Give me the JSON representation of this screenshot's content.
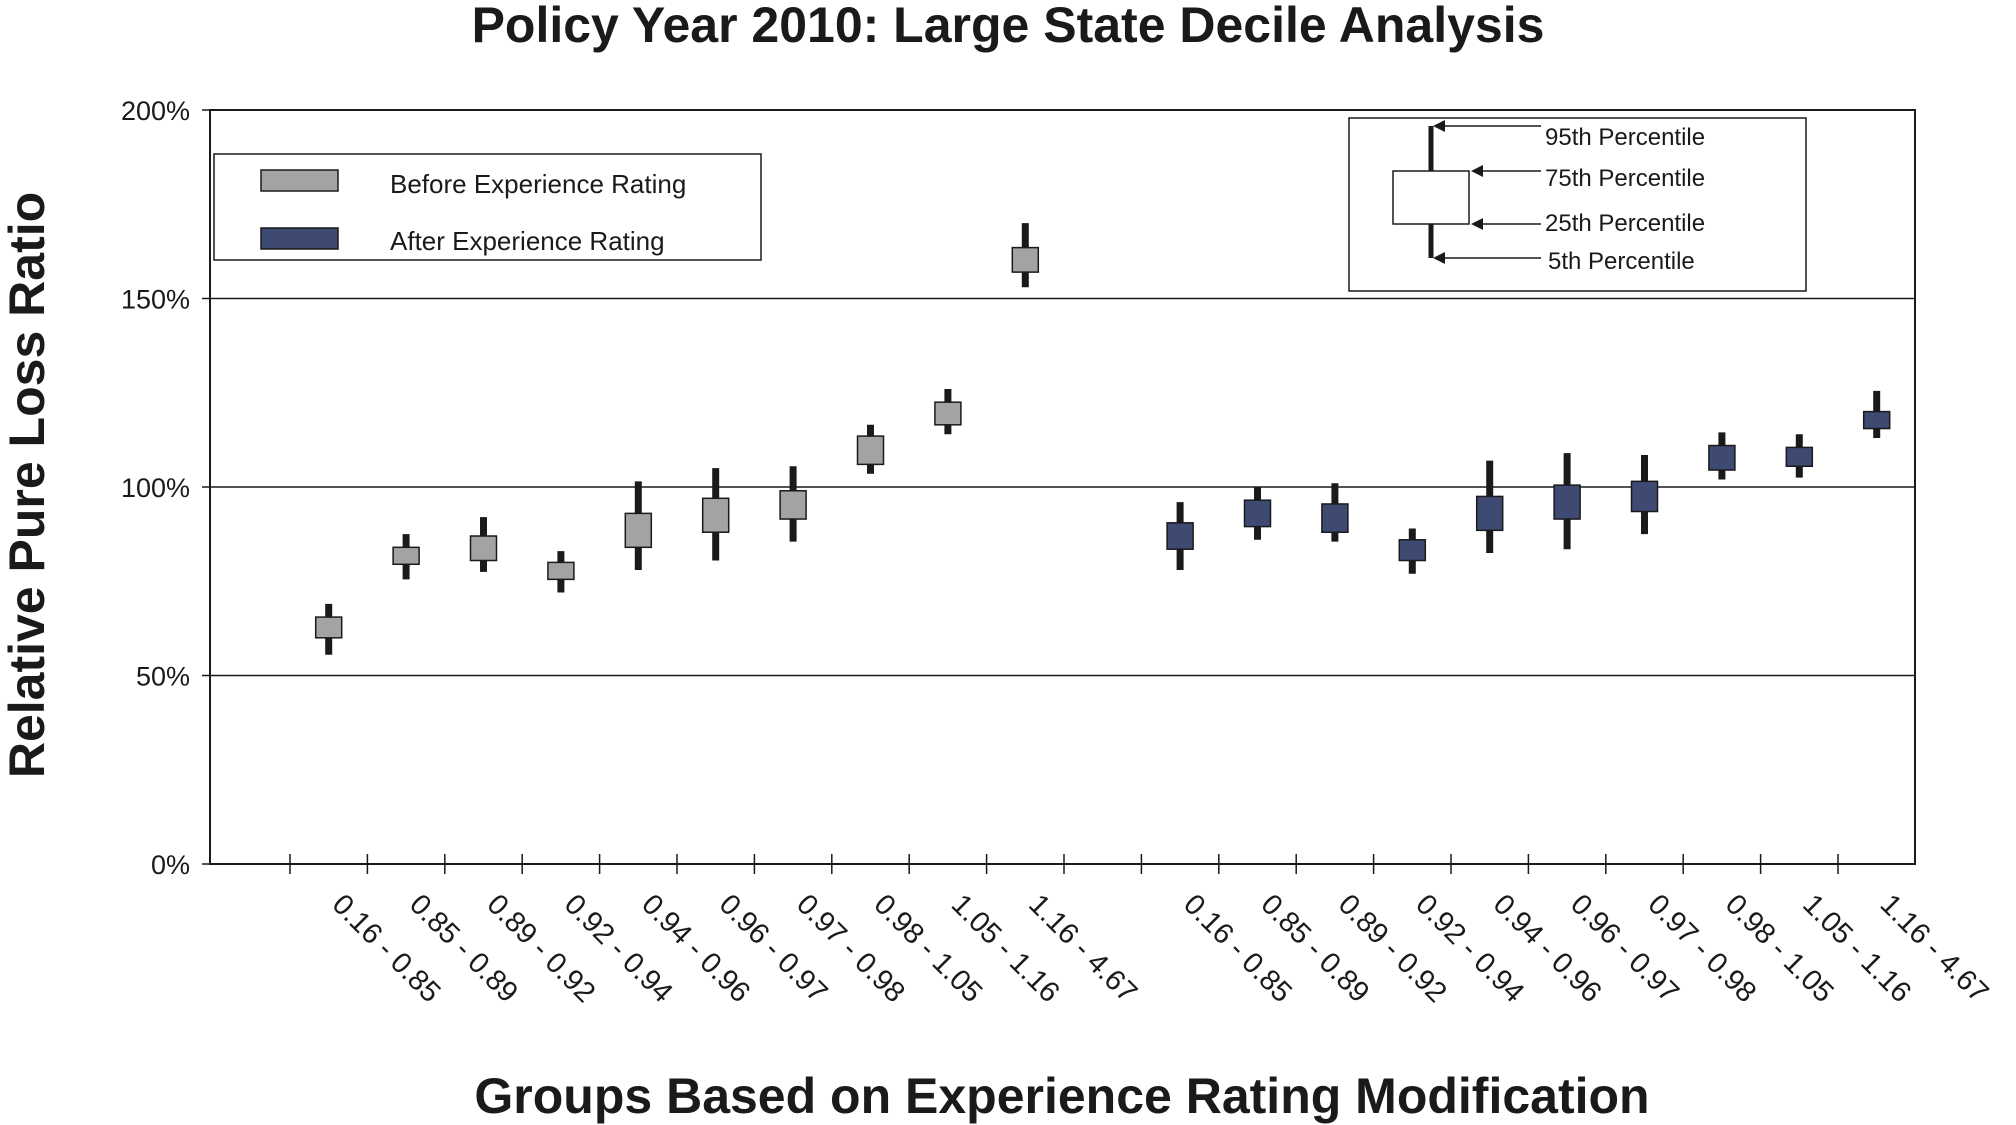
{
  "colors": {
    "before": "#a3a3a3",
    "after": "#3f4a73",
    "ink": "#1a1a1a",
    "background": "#ffffff"
  },
  "legend": {
    "before_label": "Before Experience Rating",
    "after_label": "After Experience Rating"
  },
  "key": {
    "p95_label": "95th Percentile",
    "p75_label": "75th Percentile",
    "p25_label": "25th Percentile",
    "p5_label": "5th Percentile"
  },
  "chart_data": {
    "type": "box",
    "title": "Policy Year 2010: Large State Decile Analysis",
    "xlabel": "Groups Based on Experience Rating Modification",
    "ylabel": "Relative Pure Loss Ratio",
    "ylim": [
      0,
      200
    ],
    "yticks": [
      "0%",
      "50%",
      "100%",
      "150%",
      "200%"
    ],
    "grid": "horizontal at 50% intervals",
    "legend_position": "top-left",
    "categories": [
      "0.16 - 0.85",
      "0.85 - 0.89",
      "0.89 - 0.92",
      "0.92 - 0.94",
      "0.94 - 0.96",
      "0.96 - 0.97",
      "0.97 - 0.98",
      "0.98 - 1.05",
      "1.05 - 1.16",
      "1.16 - 4.67"
    ],
    "series": [
      {
        "name": "Before Experience Rating",
        "p5": [
          55.5,
          75.5,
          77.5,
          72,
          78,
          80.5,
          85.5,
          103.5,
          114,
          153
        ],
        "p25": [
          60,
          79.5,
          80.5,
          75.5,
          84,
          88,
          91.5,
          106,
          116.5,
          157
        ],
        "p75": [
          65.5,
          84,
          87,
          80,
          93,
          97,
          99,
          113.5,
          122.5,
          163.5
        ],
        "p95": [
          69,
          87.5,
          92,
          83,
          101.5,
          105,
          105.5,
          116.5,
          126,
          170
        ]
      },
      {
        "name": "After Experience Rating",
        "p5": [
          78,
          86,
          85.5,
          77,
          82.5,
          83.5,
          87.5,
          102,
          102.5,
          113
        ],
        "p25": [
          83.5,
          89.5,
          88,
          80.5,
          88.5,
          91.5,
          93.5,
          104.5,
          105.5,
          115.5
        ],
        "p75": [
          90.5,
          96.5,
          95.5,
          86,
          97.5,
          100.5,
          101.5,
          111,
          110.5,
          120
        ],
        "p95": [
          96,
          100,
          101,
          89,
          107,
          109,
          108.5,
          114.5,
          114,
          125.5
        ]
      }
    ]
  }
}
